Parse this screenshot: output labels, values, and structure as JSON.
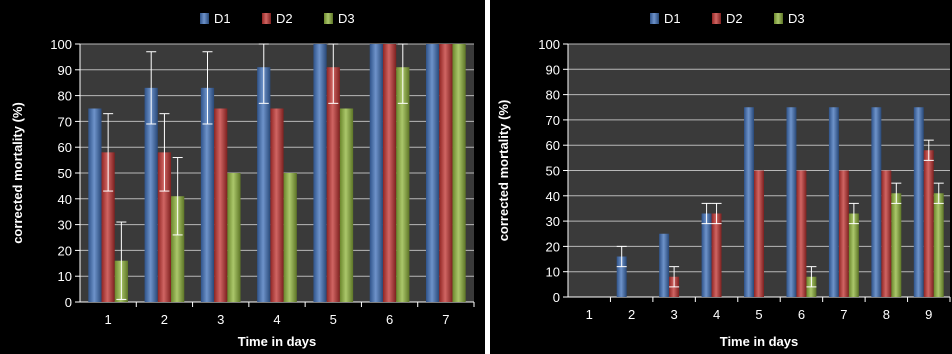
{
  "chart_data": [
    {
      "type": "bar",
      "categories": [
        "1",
        "2",
        "3",
        "4",
        "5",
        "6",
        "7"
      ],
      "series": [
        {
          "name": "D1",
          "color": "#3e6fb8",
          "values": [
            75,
            83,
            83,
            91,
            100,
            100,
            100
          ],
          "errors": [
            0,
            14,
            14,
            14,
            0,
            0,
            0
          ]
        },
        {
          "name": "D2",
          "color": "#c0312f",
          "values": [
            58,
            58,
            75,
            75,
            91,
            100,
            100
          ],
          "errors": [
            15,
            15,
            0,
            0,
            14,
            0,
            0
          ]
        },
        {
          "name": "D3",
          "color": "#8fb43a",
          "values": [
            16,
            41,
            50,
            50,
            75,
            91,
            100
          ],
          "errors": [
            15,
            15,
            0,
            0,
            0,
            14,
            0
          ]
        }
      ],
      "xlabel": "Time in days",
      "ylabel": "corrected mortality (%)",
      "ylim": [
        0,
        100
      ],
      "yticks": [
        0,
        10,
        20,
        30,
        40,
        50,
        60,
        70,
        80,
        90,
        100
      ],
      "grid": true,
      "legend": "top"
    },
    {
      "type": "bar",
      "categories": [
        "1",
        "2",
        "3",
        "4",
        "5",
        "6",
        "7",
        "8",
        "9"
      ],
      "series": [
        {
          "name": "D1",
          "color": "#3e6fb8",
          "values": [
            0,
            16,
            25,
            33,
            75,
            75,
            75,
            75,
            75
          ],
          "errors": [
            0,
            4,
            0,
            4,
            0,
            0,
            0,
            0,
            0
          ]
        },
        {
          "name": "D2",
          "color": "#c0312f",
          "values": [
            0,
            0,
            8,
            33,
            50,
            50,
            50,
            50,
            58
          ],
          "errors": [
            0,
            0,
            4,
            4,
            0,
            0,
            0,
            0,
            4
          ]
        },
        {
          "name": "D3",
          "color": "#8fb43a",
          "values": [
            0,
            0,
            0,
            0,
            0,
            8,
            33,
            41,
            41
          ],
          "errors": [
            0,
            0,
            0,
            0,
            0,
            4,
            4,
            4,
            4
          ]
        }
      ],
      "xlabel": "Time in days",
      "ylabel": "corrected mortality (%)",
      "ylim": [
        0,
        100
      ],
      "yticks": [
        0,
        10,
        20,
        30,
        40,
        50,
        60,
        70,
        80,
        90,
        100
      ],
      "grid": true,
      "legend": "top"
    }
  ]
}
